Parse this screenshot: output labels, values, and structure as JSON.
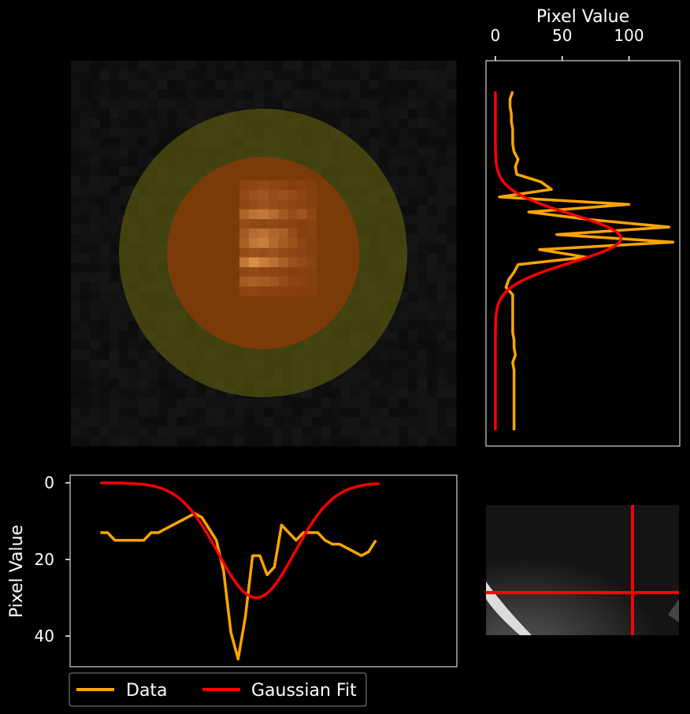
{
  "chart_data": [
    {
      "type": "image",
      "description_panel": "stamp",
      "pixel_grid": [
        [
          18,
          18,
          18,
          18,
          18,
          18,
          18,
          18,
          18,
          18,
          18,
          18,
          18,
          18,
          18,
          18,
          18,
          18,
          18,
          18,
          18,
          18,
          18,
          18,
          18,
          18,
          18,
          18,
          18,
          18,
          18,
          18,
          18,
          18,
          18,
          18,
          18,
          18,
          18,
          18,
          18,
          18,
          18,
          18,
          18,
          18,
          18,
          18,
          18,
          18
        ],
        [
          18,
          18,
          18,
          18,
          18,
          18,
          18,
          18,
          18,
          18,
          18,
          18,
          18,
          18,
          18,
          18,
          18,
          18,
          18,
          18,
          18,
          18,
          18,
          18,
          18,
          18,
          18,
          18,
          18,
          18,
          18,
          18,
          18,
          18,
          18,
          18,
          18,
          18,
          18,
          18,
          18,
          18,
          18,
          18,
          18,
          18,
          18,
          18,
          18,
          18
        ]
      ],
      "stamp": {
        "background": "#111111",
        "outer_ring_color": "#5a5a10",
        "outer_ring_opacity": 0.65,
        "inner_circle_color": "#7a3a0a",
        "inner_circle_opacity": 0.8
      }
    },
    {
      "type": "line",
      "panel": "right-profile",
      "xlabel": "Pixel Value",
      "xticks": [
        0,
        50,
        100
      ],
      "xlim": [
        -7,
        138
      ],
      "ylim": [
        0,
        47
      ],
      "orientation": "vertical",
      "series": [
        {
          "name": "Data",
          "color": "#ffa500",
          "points": [
            [
              13,
              2
            ],
            [
              11,
              3
            ],
            [
              11,
              4
            ],
            [
              12,
              5
            ],
            [
              12,
              6
            ],
            [
              13,
              7
            ],
            [
              13,
              8
            ],
            [
              13,
              9
            ],
            [
              14,
              10
            ],
            [
              17,
              11
            ],
            [
              15,
              12
            ],
            [
              16,
              13
            ],
            [
              34,
              14
            ],
            [
              42,
              15
            ],
            [
              3,
              16
            ],
            [
              100,
              17
            ],
            [
              25,
              18
            ],
            [
              70,
              19
            ],
            [
              130,
              20
            ],
            [
              46,
              21
            ],
            [
              133,
              22
            ],
            [
              33,
              23
            ],
            [
              68,
              24
            ],
            [
              17,
              25
            ],
            [
              14,
              26
            ],
            [
              10,
              27
            ],
            [
              8,
              28
            ],
            [
              13,
              29
            ],
            [
              13,
              30
            ],
            [
              13,
              31
            ],
            [
              13,
              32
            ],
            [
              13,
              33
            ],
            [
              13,
              34
            ],
            [
              14,
              35
            ],
            [
              14,
              36
            ],
            [
              15,
              37
            ],
            [
              13,
              38
            ],
            [
              14,
              39
            ],
            [
              14,
              40
            ],
            [
              14,
              41
            ],
            [
              14,
              42
            ],
            [
              14,
              43
            ],
            [
              14,
              44
            ],
            [
              14,
              45
            ],
            [
              14,
              46
            ],
            [
              14,
              47
            ]
          ]
        },
        {
          "name": "Gaussian Fit",
          "color": "#ff0000",
          "points": []
        }
      ],
      "fit": {
        "amplitude": 94,
        "center": 21.5,
        "sigma": 3.2,
        "offset": 0
      }
    },
    {
      "type": "line",
      "panel": "bottom-profile",
      "ylabel": "Pixel Value",
      "yticks": [
        0,
        20,
        40
      ],
      "ylim": [
        48,
        -2
      ],
      "xlim": [
        -2,
        47
      ],
      "series": [
        {
          "name": "Data",
          "color": "#ffa500",
          "points": [
            [
              0,
              13
            ],
            [
              1,
              13
            ],
            [
              2,
              15
            ],
            [
              3,
              15
            ],
            [
              4,
              15
            ],
            [
              5,
              15
            ],
            [
              6,
              15
            ],
            [
              7,
              13
            ],
            [
              8,
              13
            ],
            [
              9,
              12
            ],
            [
              10,
              11
            ],
            [
              11,
              10
            ],
            [
              12,
              9
            ],
            [
              13,
              8
            ],
            [
              14,
              9
            ],
            [
              15,
              12
            ],
            [
              16,
              15
            ],
            [
              17,
              23
            ],
            [
              18,
              39
            ],
            [
              19,
              46
            ],
            [
              20,
              35
            ],
            [
              21,
              19
            ],
            [
              22,
              19
            ],
            [
              23,
              24
            ],
            [
              24,
              22
            ],
            [
              25,
              11
            ],
            [
              26,
              13
            ],
            [
              27,
              15
            ],
            [
              28,
              13
            ],
            [
              29,
              13
            ],
            [
              30,
              13
            ],
            [
              31,
              15
            ],
            [
              32,
              16
            ],
            [
              33,
              16
            ],
            [
              34,
              17
            ],
            [
              35,
              18
            ],
            [
              36,
              19
            ],
            [
              37,
              18
            ],
            [
              38,
              15
            ]
          ]
        },
        {
          "name": "Gaussian Fit",
          "color": "#ff0000",
          "points": []
        }
      ],
      "fit": {
        "amplitude": 30,
        "center": 21.5,
        "sigma": 5.3,
        "offset": 0
      }
    }
  ],
  "legend": {
    "placement": "bottom-left",
    "entries": [
      {
        "label": "Data",
        "color": "#ffa500"
      },
      {
        "label": "Gaussian Fit",
        "color": "#ff0000"
      }
    ]
  },
  "thumbnail": {
    "background": "#1a1a1a",
    "crosshair_color": "#ff0000",
    "crosshair_x_frac": 0.76,
    "crosshair_y_frac": 0.68
  }
}
